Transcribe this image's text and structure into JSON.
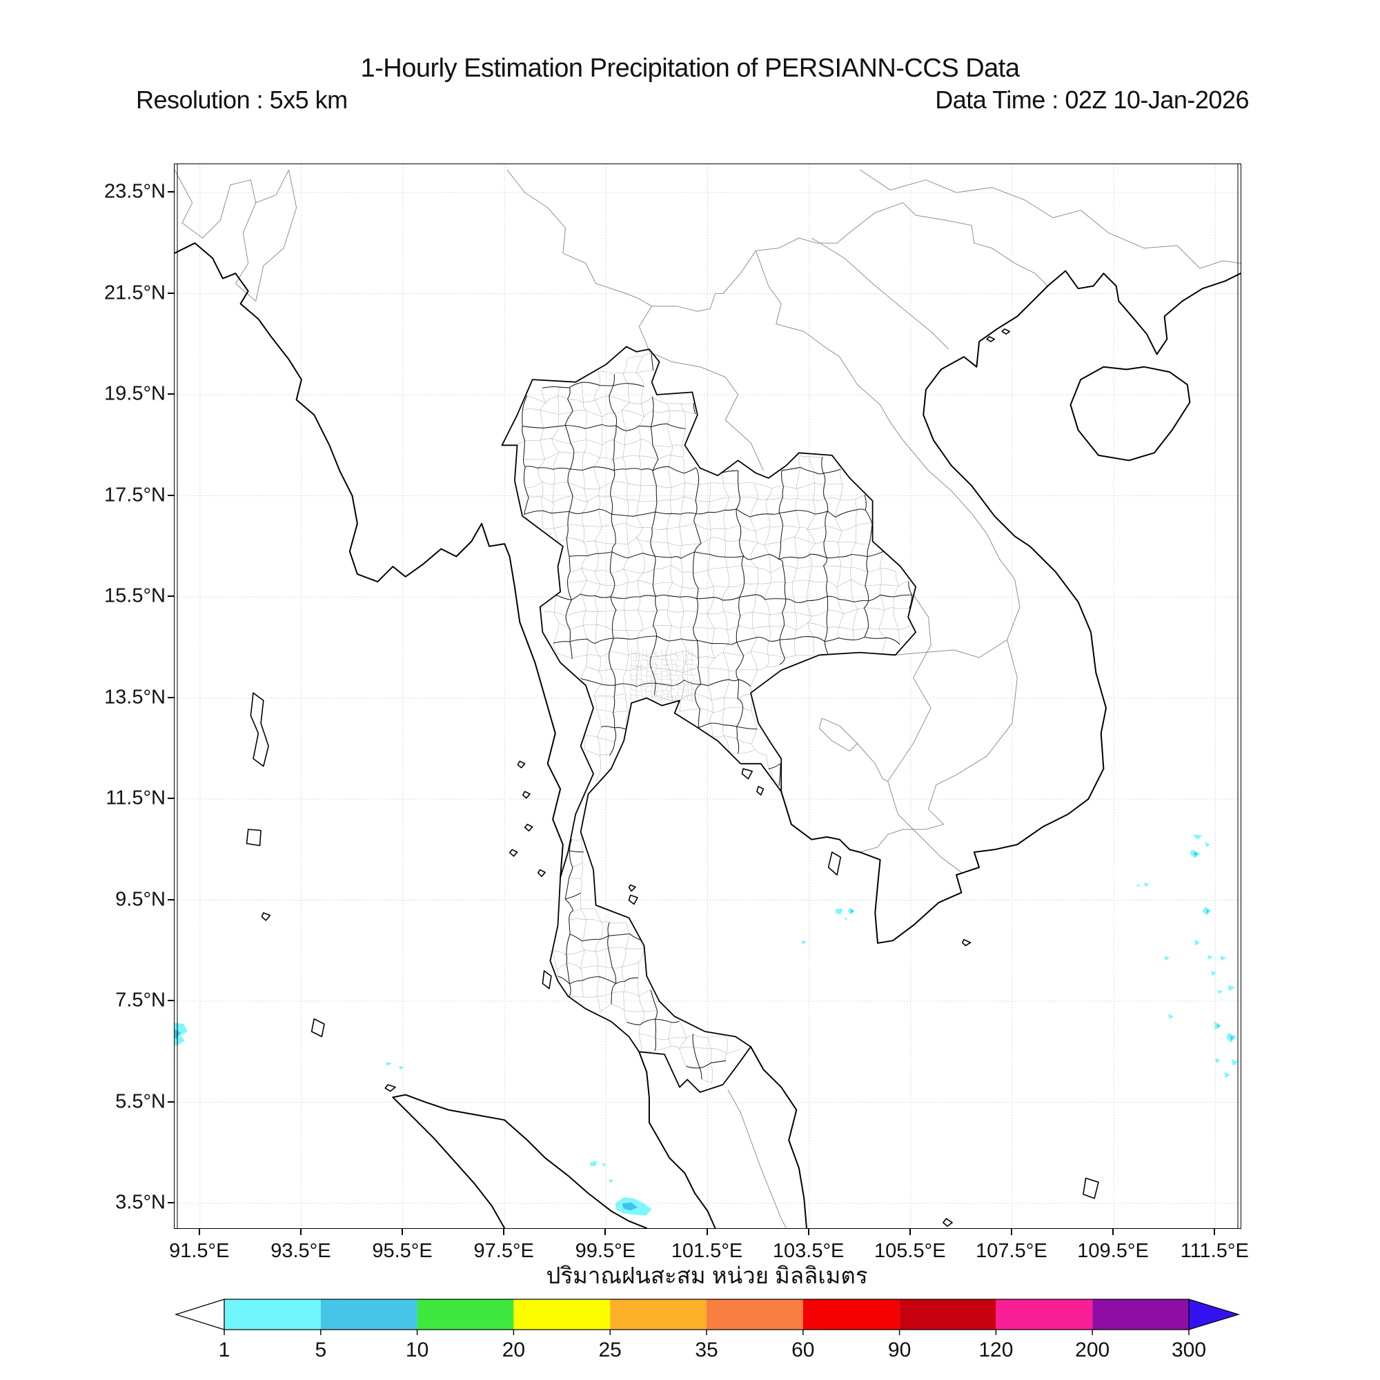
{
  "header": {
    "title": "1-Hourly Estimation Precipitation of PERSIANN-CCS Data",
    "resolution_label": "Resolution : 5x5 km",
    "data_time_label": "Data Time : 02Z 10-Jan-2026"
  },
  "map": {
    "lat_ticks": [
      {
        "label": "23.5°N",
        "value": 23.5
      },
      {
        "label": "21.5°N",
        "value": 21.5
      },
      {
        "label": "19.5°N",
        "value": 19.5
      },
      {
        "label": "17.5°N",
        "value": 17.5
      },
      {
        "label": "15.5°N",
        "value": 15.5
      },
      {
        "label": "13.5°N",
        "value": 13.5
      },
      {
        "label": "11.5°N",
        "value": 11.5
      },
      {
        "label": "9.5°N",
        "value": 9.5
      },
      {
        "label": "7.5°N",
        "value": 7.5
      },
      {
        "label": "5.5°N",
        "value": 5.5
      },
      {
        "label": "3.5°N",
        "value": 3.5
      }
    ],
    "lon_ticks": [
      {
        "label": "91.5°E",
        "value": 91.5
      },
      {
        "label": "93.5°E",
        "value": 93.5
      },
      {
        "label": "95.5°E",
        "value": 95.5
      },
      {
        "label": "97.5°E",
        "value": 97.5
      },
      {
        "label": "99.5°E",
        "value": 99.5
      },
      {
        "label": "101.5°E",
        "value": 101.5
      },
      {
        "label": "103.5°E",
        "value": 103.5
      },
      {
        "label": "105.5°E",
        "value": 105.5
      },
      {
        "label": "107.5°E",
        "value": 107.5
      },
      {
        "label": "109.5°E",
        "value": 109.5
      },
      {
        "label": "111.5°E",
        "value": 111.5
      }
    ]
  },
  "caption_thai": "ปริมาณฝนสะสม หน่วย มิลลิเมตร",
  "colorbar": {
    "values": [
      "1",
      "5",
      "10",
      "20",
      "25",
      "35",
      "60",
      "90",
      "120",
      "200",
      "300"
    ],
    "segment_colors": [
      "#70f6fc",
      "#46c5e9",
      "#3ee83e",
      "#fdfd00",
      "#fdb02a",
      "#f97e41",
      "#f40000",
      "#c7000e",
      "#fa1e96",
      "#8e0da5"
    ],
    "under_color": "#ffffff",
    "over_color": "#3213f0",
    "precip_light": "#7df7fd",
    "precip_dark": "#3fc3e8"
  }
}
